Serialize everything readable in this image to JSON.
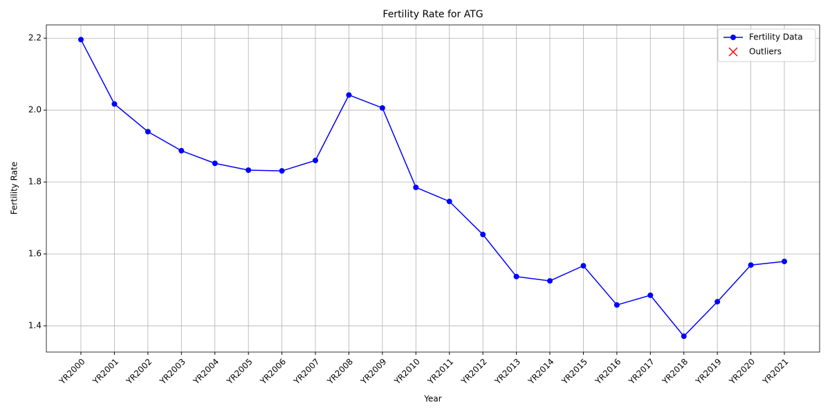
{
  "chart_data": {
    "type": "line",
    "title": "Fertility Rate for ATG",
    "x_label": "Year",
    "y_label": "Fertility Rate",
    "categories": [
      "YR2000",
      "YR2001",
      "YR2002",
      "YR2003",
      "YR2004",
      "YR2005",
      "YR2006",
      "YR2007",
      "YR2008",
      "YR2009",
      "YR2010",
      "YR2011",
      "YR2012",
      "YR2013",
      "YR2014",
      "YR2015",
      "YR2016",
      "YR2017",
      "YR2018",
      "YR2019",
      "YR2020",
      "YR2021"
    ],
    "series": [
      {
        "name": "Fertility Data",
        "color": "#0000ff",
        "marker": "o",
        "values": [
          2.196,
          2.017,
          1.94,
          1.887,
          1.852,
          1.833,
          1.831,
          1.86,
          2.042,
          2.006,
          1.785,
          1.746,
          1.654,
          1.537,
          1.525,
          1.567,
          1.458,
          1.485,
          1.371,
          1.467,
          1.569,
          1.579
        ]
      },
      {
        "name": "Outliers",
        "color": "#ff0000",
        "marker": "x",
        "values": [
          null,
          null,
          null,
          null,
          null,
          null,
          null,
          null,
          null,
          null,
          null,
          null,
          null,
          null,
          null,
          null,
          null,
          null,
          null,
          null,
          null,
          null
        ]
      }
    ],
    "ylim": [
      1.327,
      2.237
    ],
    "yticks": [
      1.4,
      1.6,
      1.8,
      {
        "value": 2,
        "label": "2.0"
      },
      2.2
    ],
    "grid": true,
    "legend": "upper right"
  }
}
